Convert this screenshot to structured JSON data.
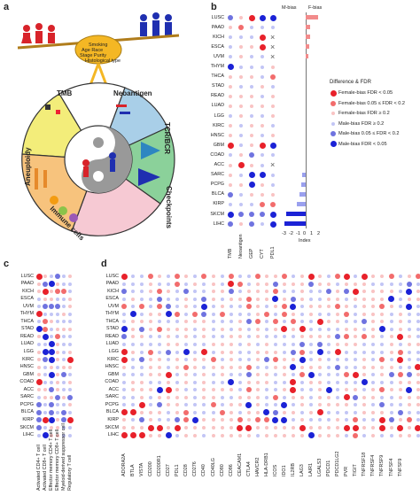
{
  "panels": {
    "a": {
      "label": "a"
    },
    "b": {
      "label": "b"
    },
    "c": {
      "label": "c"
    },
    "d": {
      "label": "d"
    }
  },
  "panel_a": {
    "factors": [
      "Smoking",
      "Age",
      "Race",
      "Stage",
      "Purity",
      "Histological",
      "type"
    ],
    "segments": [
      "TMB",
      "Neoantigen",
      "TCR/BCR",
      "Checkpoints",
      "Immune cells",
      "Aneuploidy"
    ],
    "center_labels": []
  },
  "cancers": [
    "LUSC",
    "PAAD",
    "KICH",
    "ESCA",
    "UVM",
    "THYM",
    "THCA",
    "STAD",
    "READ",
    "LUAD",
    "LGG",
    "KIRC",
    "HNSC",
    "GBM",
    "COAD",
    "ACC",
    "SARC",
    "PCPG",
    "BLCA",
    "KIRP",
    "SKCM",
    "LIHC"
  ],
  "panel_b": {
    "columns": [
      "TMB",
      "Neoantigen",
      "GEP",
      "CYT",
      "PDL1"
    ],
    "bias_labels": {
      "m": "M-bias",
      "f": "F-bias"
    },
    "axis_title": "Index",
    "ticks": [
      "-3",
      "-2",
      "-1",
      "0",
      "1",
      "2"
    ],
    "index_values": [
      1.8,
      0.6,
      0.6,
      0.5,
      0.4,
      0,
      0,
      0,
      0,
      0,
      0,
      0,
      0,
      0,
      0,
      0,
      -0.5,
      -0.6,
      -0.9,
      -1.2,
      -2.8,
      -3.0
    ],
    "legend_title": "Difference & FDR",
    "legend": [
      {
        "label": "Female-bias FDR < 0.05",
        "color": "#e8212a",
        "size": 7
      },
      {
        "label": "Female-bias 0.05 ≤ FDR < 0.2",
        "color": "#f26c6c",
        "size": 6
      },
      {
        "label": "Female-bias FDR ≥ 0.2",
        "color": "#f9c3c3",
        "size": 4
      },
      {
        "label": "Male-bias FDR ≥ 0.2",
        "color": "#c2c5f5",
        "size": 4
      },
      {
        "label": "Male-bias 0.05 ≤ FDR < 0.2",
        "color": "#6f73e0",
        "size": 6
      },
      {
        "label": "Male-bias FDR < 0.05",
        "color": "#1b22d6",
        "size": 7
      }
    ]
  },
  "panel_c": {
    "columns": [
      "Activated CD4+ T cell",
      "Activated CD8+ T cell",
      "Effector memory CD4+ T cell",
      "Effector memory CD8+ T cell",
      "Myeloid-derived suppressor cell",
      "Regulatory T cell"
    ]
  },
  "panel_d": {
    "columns": [
      "ADORA2A",
      "BTLA",
      "VISTA",
      "CD200",
      "CD200R1",
      "CD27",
      "PDL1",
      "CD28",
      "CD276",
      "CD40",
      "CD40LG",
      "CD80",
      "CD86",
      "CEACAM1",
      "CTLA4",
      "HAVCR2",
      "HLA-DRB1",
      "ICOS",
      "IDO1",
      "IL2RB",
      "LAG3",
      "LAIR1",
      "LGALS3",
      "PDCD1",
      "PDCD1LG2",
      "PVR",
      "TIGIT",
      "TNFRSF18",
      "TNFRSF4",
      "TNFRSF9",
      "TNFSF4",
      "TNFSF9",
      "TNFRSF13",
      "TNFRSF14"
    ],
    "visible_column_labels": [
      "ADORA2A",
      "BTLA",
      "VISTA",
      "CD200",
      "CD200R1",
      "CD27",
      "PDL1",
      "CD28",
      "CD276",
      "CD40",
      "CD40LG",
      "CD80",
      "CD86",
      "CEACAM1",
      "CTLA4",
      "HAVCR2",
      "HLA-DRB1",
      "ICOS",
      "IDO1",
      "IL2RB",
      "LAG3",
      "LAIR1",
      "LGALS3",
      "PDCD1",
      "PDCD1LG2",
      "PVR",
      "TIGIT",
      "TNFRSF18",
      "TNFRSF4",
      "TNFRSF9",
      "TNFSF4",
      "TNFSF9"
    ]
  },
  "colors": {
    "fs": "#e8212a",
    "fm": "#f26c6c",
    "fw": "#f9c3c3",
    "mw": "#c2c5f5",
    "mm": "#6f73e0",
    "ms": "#1b22d6",
    "bar_f": "#f28b8b",
    "bar_m_light": "#9aa0ee",
    "bar_m_dark": "#1b22d6"
  }
}
